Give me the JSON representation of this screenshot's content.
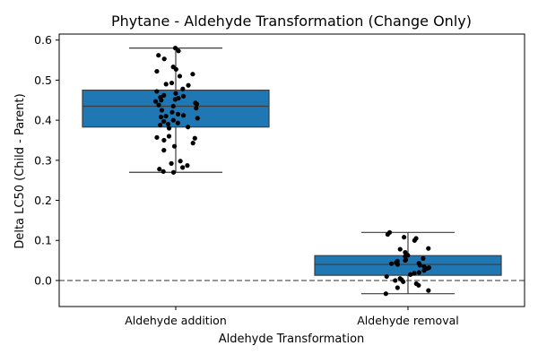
{
  "chart_data": {
    "type": "box",
    "title": "Phytane - Aldehyde Transformation (Change Only)",
    "xlabel": "Aldehyde Transformation",
    "ylabel": "Delta LC50 (Child - Parent)",
    "categories": [
      "Aldehyde addition",
      "Aldehyde removal"
    ],
    "ylim": [
      -0.065,
      0.615
    ],
    "yticks": [
      0.0,
      0.1,
      0.2,
      0.3,
      0.4,
      0.5,
      0.6
    ],
    "ytick_labels": [
      "0.0",
      "0.1",
      "0.2",
      "0.3",
      "0.4",
      "0.5",
      "0.6"
    ],
    "reference_line": {
      "y": 0.0,
      "style": "dashed",
      "color": "#808080"
    },
    "box_color": "#1f77b4",
    "point_color": "#000000",
    "grid": false,
    "boxes": [
      {
        "category": "Aldehyde addition",
        "whisker_low": 0.27,
        "q1": 0.383,
        "median": 0.435,
        "q3": 0.475,
        "whisker_high": 0.58
      },
      {
        "category": "Aldehyde removal",
        "whisker_low": -0.033,
        "q1": 0.013,
        "median": 0.04,
        "q3": 0.062,
        "whisker_high": 0.12
      }
    ],
    "points": [
      {
        "category": "Aldehyde addition",
        "values": [
          0.58,
          0.573,
          0.562,
          0.553,
          0.533,
          0.527,
          0.522,
          0.515,
          0.51,
          0.493,
          0.49,
          0.487,
          0.478,
          0.472,
          0.467,
          0.462,
          0.46,
          0.457,
          0.455,
          0.452,
          0.45,
          0.447,
          0.443,
          0.44,
          0.438,
          0.435,
          0.43,
          0.425,
          0.42,
          0.415,
          0.412,
          0.41,
          0.408,
          0.405,
          0.4,
          0.397,
          0.393,
          0.39,
          0.388,
          0.383,
          0.38,
          0.36,
          0.357,
          0.355,
          0.35,
          0.343,
          0.335,
          0.325,
          0.298,
          0.292,
          0.287,
          0.282,
          0.278,
          0.272,
          0.27
        ]
      },
      {
        "category": "Aldehyde removal",
        "values": [
          0.12,
          0.115,
          0.108,
          0.105,
          0.1,
          0.08,
          0.078,
          0.07,
          0.063,
          0.06,
          0.055,
          0.052,
          0.05,
          0.048,
          0.045,
          0.043,
          0.042,
          0.04,
          0.038,
          0.035,
          0.032,
          0.03,
          0.025,
          0.02,
          0.018,
          0.015,
          0.01,
          0.005,
          0.002,
          0.0,
          -0.003,
          -0.008,
          -0.012,
          -0.018,
          -0.025,
          -0.033
        ]
      }
    ]
  }
}
